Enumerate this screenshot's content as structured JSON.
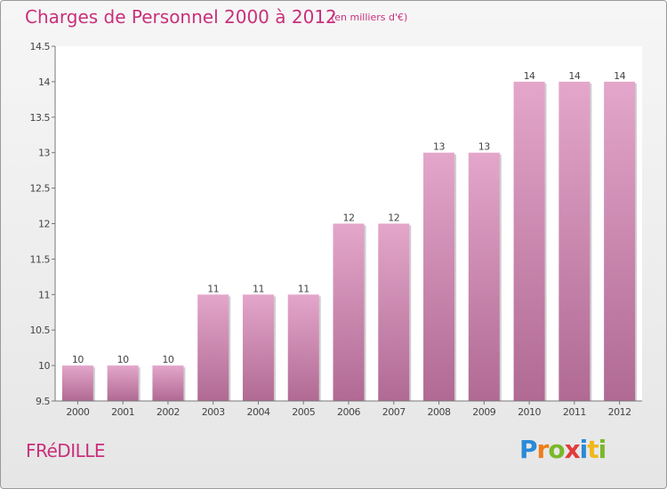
{
  "header": {
    "title": "Charges de Personnel 2000 à 2012",
    "subtitle": "(en milliers d'€)"
  },
  "footer": {
    "commune": "FRéDILLE",
    "logo_letters": [
      "P",
      "r",
      "o",
      "x",
      "i",
      "t",
      "i"
    ]
  },
  "colors": {
    "accent": "#c8307b",
    "bar_top": "#e4a6cb",
    "bar_bottom": "#b06a93"
  },
  "chart_data": {
    "type": "bar",
    "categories": [
      "2000",
      "2001",
      "2002",
      "2003",
      "2004",
      "2005",
      "2006",
      "2007",
      "2008",
      "2009",
      "2010",
      "2011",
      "2012"
    ],
    "values": [
      10,
      10,
      10,
      11,
      11,
      11,
      12,
      12,
      13,
      13,
      14,
      14,
      14
    ],
    "data_labels": [
      "10",
      "10",
      "10",
      "11",
      "11",
      "11",
      "12",
      "12",
      "13",
      "13",
      "14",
      "14",
      "14"
    ],
    "ylim": [
      9.5,
      14.5
    ],
    "yticks": [
      "9.5",
      "10",
      "10.5",
      "11",
      "11.5",
      "12",
      "12.5",
      "13",
      "13.5",
      "14",
      "14.5"
    ],
    "grid": false,
    "title": "Charges de Personnel 2000 à 2012",
    "xlabel": "",
    "ylabel": ""
  }
}
